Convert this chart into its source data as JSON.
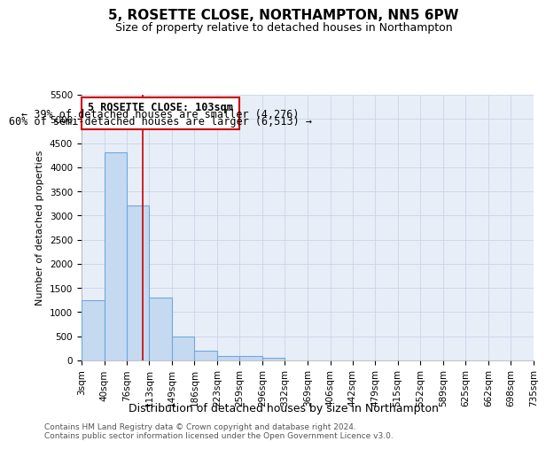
{
  "title": "5, ROSETTE CLOSE, NORTHAMPTON, NN5 6PW",
  "subtitle": "Size of property relative to detached houses in Northampton",
  "xlabel": "Distribution of detached houses by size in Northampton",
  "ylabel": "Number of detached properties",
  "footer_line1": "Contains HM Land Registry data © Crown copyright and database right 2024.",
  "footer_line2": "Contains public sector information licensed under the Open Government Licence v3.0.",
  "annotation_line1": "5 ROSETTE CLOSE: 103sqm",
  "annotation_line2": "← 39% of detached houses are smaller (4,276)",
  "annotation_line3": "60% of semi-detached houses are larger (6,513) →",
  "property_size_sqm": 103,
  "bin_edges": [
    3,
    40,
    76,
    113,
    149,
    186,
    223,
    259,
    296,
    332,
    369,
    406,
    442,
    479,
    515,
    552,
    589,
    625,
    662,
    698,
    735
  ],
  "bin_labels": [
    "3sqm",
    "40sqm",
    "76sqm",
    "113sqm",
    "149sqm",
    "186sqm",
    "223sqm",
    "259sqm",
    "296sqm",
    "332sqm",
    "369sqm",
    "406sqm",
    "442sqm",
    "479sqm",
    "515sqm",
    "552sqm",
    "589sqm",
    "625sqm",
    "662sqm",
    "698sqm",
    "735sqm"
  ],
  "bar_values": [
    1250,
    4300,
    3200,
    1300,
    500,
    200,
    100,
    100,
    60,
    0,
    0,
    0,
    0,
    0,
    0,
    0,
    0,
    0,
    0,
    0
  ],
  "bar_color": "#c5d9f1",
  "bar_edge_color": "#6fa8dc",
  "vline_color": "#cc0000",
  "ylim": [
    0,
    5500
  ],
  "yticks": [
    0,
    500,
    1000,
    1500,
    2000,
    2500,
    3000,
    3500,
    4000,
    4500,
    5000,
    5500
  ],
  "annotation_box_edge": "#cc0000",
  "grid_color": "#c8d4e8",
  "background_color": "#e8eef8",
  "title_fontsize": 11,
  "subtitle_fontsize": 9,
  "xlabel_fontsize": 9,
  "ylabel_fontsize": 8,
  "tick_fontsize": 7.5,
  "annotation_fontsize": 8.5,
  "footer_fontsize": 6.5
}
